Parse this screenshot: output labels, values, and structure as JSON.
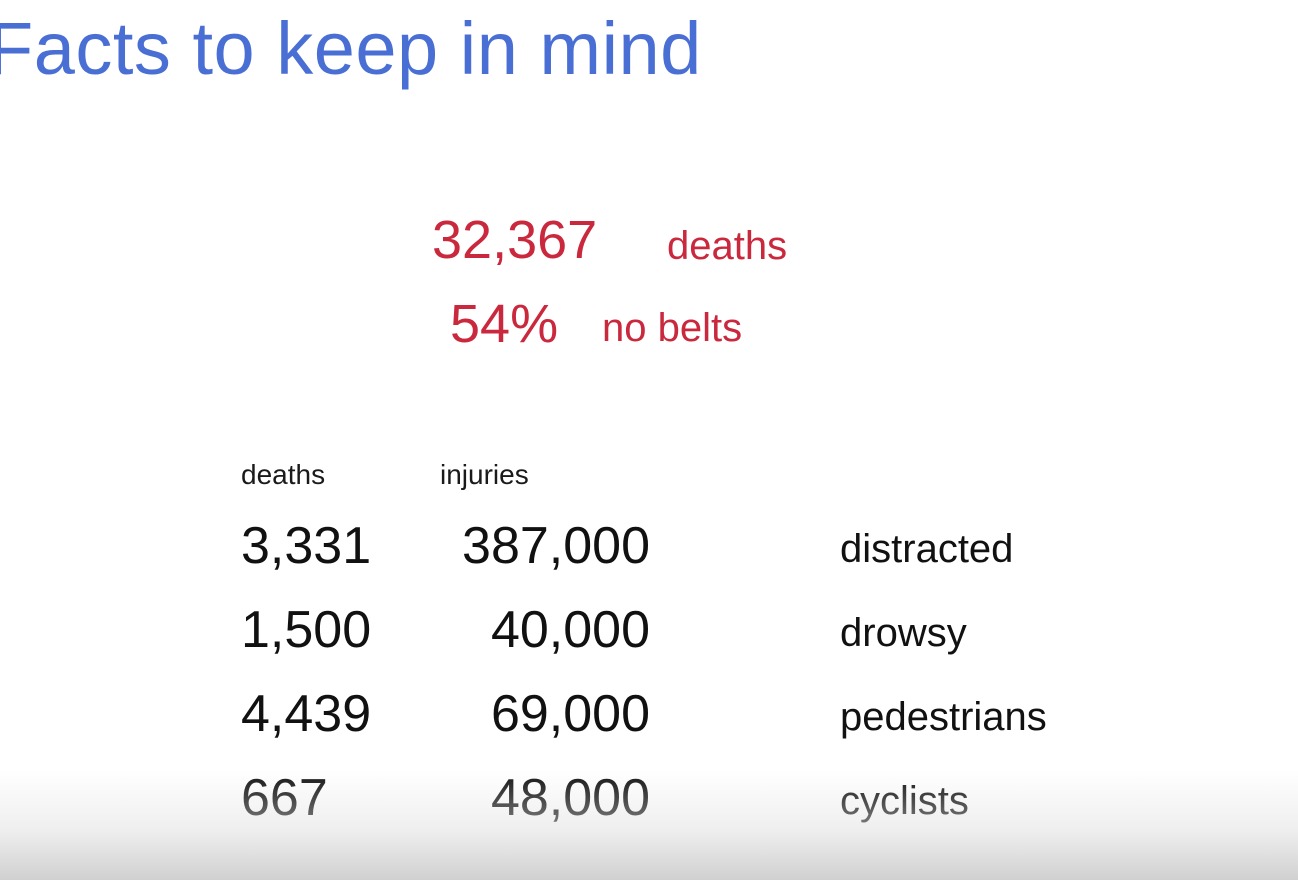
{
  "slide": {
    "title": "Facts to keep in mind",
    "highlights": [
      {
        "value": "32,367",
        "label": "deaths"
      },
      {
        "value": "54%",
        "label": "no belts"
      }
    ],
    "table": {
      "headers": {
        "deaths": "deaths",
        "injuries": "injuries"
      },
      "rows": [
        {
          "deaths": "3,331",
          "injuries": "387,000",
          "category": "distracted"
        },
        {
          "deaths": "1,500",
          "injuries": "40,000",
          "category": "drowsy"
        },
        {
          "deaths": "4,439",
          "injuries": "69,000",
          "category": "pedestrians"
        },
        {
          "deaths": "667",
          "injuries": "48,000",
          "category": "cyclists"
        }
      ]
    }
  },
  "colors": {
    "title": "#4a6fd4",
    "highlight": "#c9283d",
    "body_text": "#111111",
    "background": "#ffffff"
  }
}
